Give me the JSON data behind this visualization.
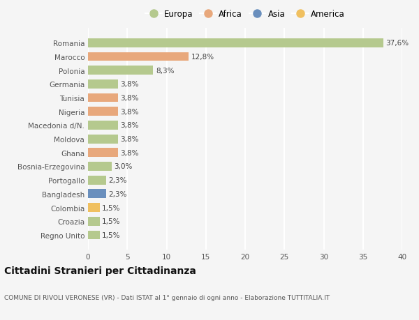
{
  "countries": [
    "Romania",
    "Marocco",
    "Polonia",
    "Germania",
    "Tunisia",
    "Nigeria",
    "Macedonia d/N.",
    "Moldova",
    "Ghana",
    "Bosnia-Erzegovina",
    "Portogallo",
    "Bangladesh",
    "Colombia",
    "Croazia",
    "Regno Unito"
  ],
  "values": [
    37.6,
    12.8,
    8.3,
    3.8,
    3.8,
    3.8,
    3.8,
    3.8,
    3.8,
    3.0,
    2.3,
    2.3,
    1.5,
    1.5,
    1.5
  ],
  "labels": [
    "37,6%",
    "12,8%",
    "8,3%",
    "3,8%",
    "3,8%",
    "3,8%",
    "3,8%",
    "3,8%",
    "3,8%",
    "3,0%",
    "2,3%",
    "2,3%",
    "1,5%",
    "1,5%",
    "1,5%"
  ],
  "continents": [
    "Europa",
    "Africa",
    "Europa",
    "Europa",
    "Africa",
    "Africa",
    "Europa",
    "Europa",
    "Africa",
    "Europa",
    "Europa",
    "Asia",
    "America",
    "Europa",
    "Europa"
  ],
  "continent_colors": {
    "Europa": "#b5c98e",
    "Africa": "#e8a87c",
    "Asia": "#6a8fbd",
    "America": "#f0c060"
  },
  "legend_order": [
    "Europa",
    "Africa",
    "Asia",
    "America"
  ],
  "title": "Cittadini Stranieri per Cittadinanza",
  "subtitle": "COMUNE DI RIVOLI VERONESE (VR) - Dati ISTAT al 1° gennaio di ogni anno - Elaborazione TUTTITALIA.IT",
  "xlim": [
    0,
    40
  ],
  "xticks": [
    0,
    5,
    10,
    15,
    20,
    25,
    30,
    35,
    40
  ],
  "bg_color": "#f5f5f5",
  "bar_height": 0.65,
  "label_fontsize": 7.5,
  "tick_fontsize": 7.5,
  "legend_fontsize": 8.5,
  "title_fontsize": 10,
  "subtitle_fontsize": 6.5
}
